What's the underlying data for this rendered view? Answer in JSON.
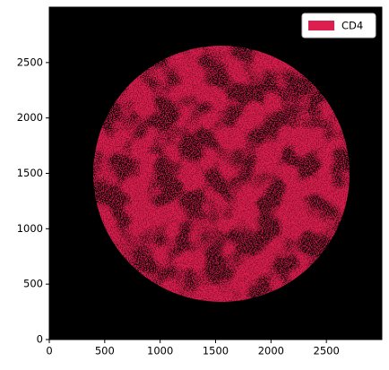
{
  "chart_data": {
    "type": "image",
    "xlim": [
      0,
      3000
    ],
    "ylim": [
      0,
      3000
    ],
    "xticks": [
      0,
      500,
      1000,
      1500,
      2000,
      2500
    ],
    "yticks": [
      0,
      500,
      1000,
      1500,
      2000,
      2500
    ],
    "legend": "upper right",
    "series": [
      {
        "name": "CD4",
        "color": "#dc1f4e"
      }
    ]
  }
}
